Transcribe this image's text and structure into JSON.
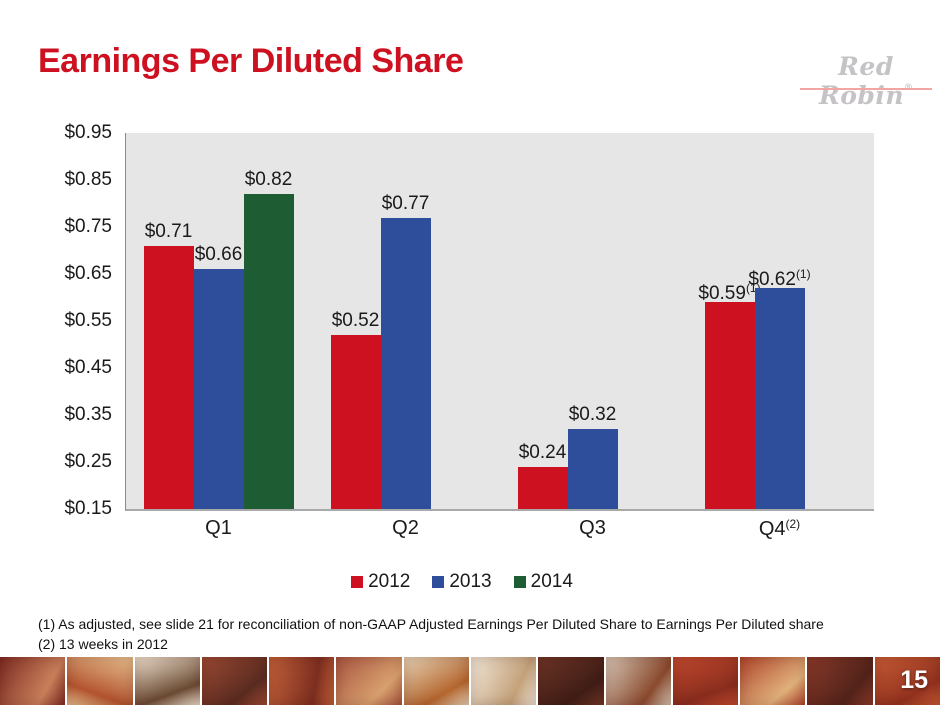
{
  "header": {
    "title": "Earnings Per Diluted Share",
    "title_color": "#ce1120",
    "logo_text": "Red Robin",
    "logo_registered": "®",
    "logo_color": "#c5c3c6",
    "logo_underline_color": "#f2a6a4"
  },
  "chart_data": {
    "type": "bar",
    "title": "",
    "xlabel": "",
    "ylabel": "",
    "categories": [
      "Q1",
      "Q2",
      "Q3",
      "Q4"
    ],
    "category_superscripts": [
      "",
      "",
      "",
      "(2)"
    ],
    "series": [
      {
        "name": "2012",
        "color": "#ce1120",
        "values": [
          0.71,
          0.52,
          0.24,
          0.59
        ],
        "labels": [
          "$0.71",
          "$0.52",
          "$0.24",
          "$0.59"
        ],
        "label_superscripts": [
          "",
          "",
          "",
          "(1)"
        ]
      },
      {
        "name": "2013",
        "color": "#2e4d9b",
        "values": [
          0.66,
          0.77,
          0.32,
          0.62
        ],
        "labels": [
          "$0.66",
          "$0.77",
          "$0.32",
          "$0.62"
        ],
        "label_superscripts": [
          "",
          "",
          "",
          "(1)"
        ]
      },
      {
        "name": "2014",
        "color": "#1e5c33",
        "values": [
          0.82,
          null,
          null,
          null
        ],
        "labels": [
          "$0.82",
          "",
          "",
          ""
        ],
        "label_superscripts": [
          "",
          "",
          "",
          ""
        ]
      }
    ],
    "y_axis": {
      "min": 0.15,
      "max": 0.95,
      "tick_step": 0.1,
      "tick_labels": [
        "$0.15",
        "$0.25",
        "$0.35",
        "$0.45",
        "$0.55",
        "$0.65",
        "$0.75",
        "$0.85",
        "$0.95"
      ]
    },
    "plot_background": "#e6e6e6",
    "axis_line_color": "#8a8a8a",
    "gridlines": false,
    "legend_position": "bottom"
  },
  "footnotes": [
    "(1) As adjusted, see slide 21 for reconciliation of non-GAAP Adjusted Earnings Per Diluted Share to Earnings Per Diluted share",
    "(2) 13 weeks in 2012"
  ],
  "footer": {
    "page_number": "15",
    "photo_tile_colors": [
      {
        "from": "#7d2b22",
        "to": "#c97f5a",
        "angle": 120
      },
      {
        "from": "#e9c291",
        "to": "#b3542f",
        "angle": 200
      },
      {
        "from": "#efe3d0",
        "to": "#6b4a33",
        "angle": 160
      },
      {
        "from": "#9c4a33",
        "to": "#5a2b20",
        "angle": 140
      },
      {
        "from": "#c2603a",
        "to": "#7c2e1f",
        "angle": 100
      },
      {
        "from": "#a85540",
        "to": "#d8a06e",
        "angle": 135
      },
      {
        "from": "#e8d6b8",
        "to": "#b5662f",
        "angle": 150
      },
      {
        "from": "#f2e8da",
        "to": "#c4a27a",
        "angle": 115
      },
      {
        "from": "#6e3526",
        "to": "#3f1d16",
        "angle": 145
      },
      {
        "from": "#d8c9b8",
        "to": "#8a4a2e",
        "angle": 125
      },
      {
        "from": "#c24a2e",
        "to": "#8a2d1e",
        "angle": 160
      },
      {
        "from": "#b0452c",
        "to": "#e0b07a",
        "angle": 140
      },
      {
        "from": "#8a3a2a",
        "to": "#52231a",
        "angle": 130
      },
      {
        "from": "#c75c35",
        "to": "#93321f",
        "angle": 150
      }
    ]
  }
}
